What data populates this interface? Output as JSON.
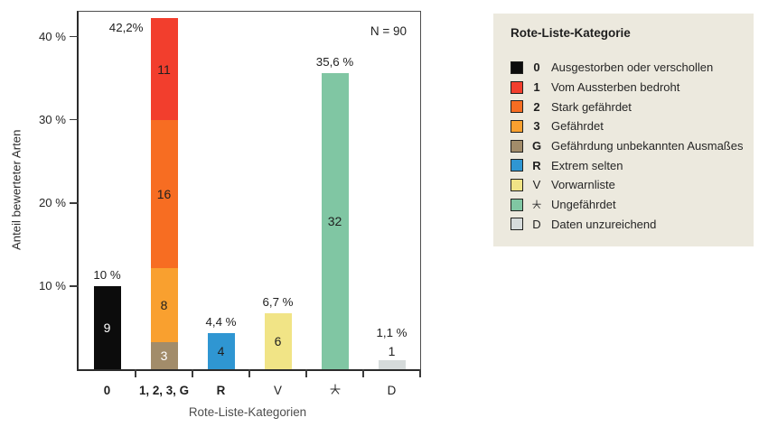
{
  "chart_data": {
    "type": "bar",
    "stacked": true,
    "annotation": "N = 90",
    "n_total": 90,
    "xlabel": "Rote-Liste-Kategorien",
    "ylabel": "Anteil bewerteter Arten",
    "ylim": [
      0,
      43
    ],
    "grid": false,
    "legend_position": "right",
    "y_ticks": [
      {
        "value": 10,
        "label": "10 %"
      },
      {
        "value": 20,
        "label": "20 %"
      },
      {
        "value": 30,
        "label": "30 %"
      },
      {
        "value": 40,
        "label": "40 %"
      }
    ],
    "categories": [
      {
        "tick": "0",
        "bold": true,
        "star": false,
        "total_pct": 10.0,
        "total_label": "10 %",
        "side_label": false,
        "count_outside": false,
        "segments": [
          {
            "code": "0",
            "count": 9,
            "pct": 10.0,
            "color": "#0c0c0c",
            "text_color": "#ffffff"
          }
        ]
      },
      {
        "tick": "1, 2, 3, G",
        "bold": true,
        "star": false,
        "total_pct": 42.2,
        "total_label": "42,2%",
        "side_label": true,
        "count_outside": false,
        "segments": [
          {
            "code": "G",
            "count": 3,
            "pct": 3.3,
            "color": "#a28c6a",
            "text_color": "#ffffff"
          },
          {
            "code": "3",
            "count": 8,
            "pct": 8.9,
            "color": "#f9a02f",
            "text_color": "#1f1f1f"
          },
          {
            "code": "2",
            "count": 16,
            "pct": 17.8,
            "color": "#f76d22",
            "text_color": "#1f1f1f"
          },
          {
            "code": "1",
            "count": 11,
            "pct": 12.2,
            "color": "#f23e2d",
            "text_color": "#1f1f1f"
          }
        ]
      },
      {
        "tick": "R",
        "bold": true,
        "star": false,
        "total_pct": 4.4,
        "total_label": "4,4 %",
        "side_label": false,
        "count_outside": false,
        "segments": [
          {
            "code": "R",
            "count": 4,
            "pct": 4.4,
            "color": "#2f96d2",
            "text_color": "#1f1f1f"
          }
        ]
      },
      {
        "tick": "V",
        "bold": false,
        "star": false,
        "total_pct": 6.7,
        "total_label": "6,7 %",
        "side_label": false,
        "count_outside": false,
        "segments": [
          {
            "code": "V",
            "count": 6,
            "pct": 6.7,
            "color": "#f1e486",
            "text_color": "#1f1f1f"
          }
        ]
      },
      {
        "tick": "✶",
        "bold": false,
        "star": true,
        "total_pct": 35.6,
        "total_label": "35,6 %",
        "side_label": false,
        "count_outside": false,
        "segments": [
          {
            "code": "✶",
            "count": 32,
            "pct": 35.6,
            "color": "#80c6a3",
            "text_color": "#1f1f1f"
          }
        ]
      },
      {
        "tick": "D",
        "bold": false,
        "star": false,
        "total_pct": 1.1,
        "total_label": "1,1 %",
        "side_label": false,
        "count_outside": true,
        "segments": [
          {
            "code": "D",
            "count": 1,
            "pct": 1.1,
            "color": "#d6dbdb",
            "text_color": "#1f1f1f"
          }
        ]
      }
    ]
  },
  "legend": {
    "title": "Rote-Liste-Kategorie",
    "background": "#ece9de",
    "items": [
      {
        "code": "0",
        "bold": true,
        "star": false,
        "label": "Ausgestorben oder verschollen",
        "color": "#0c0c0c"
      },
      {
        "code": "1",
        "bold": true,
        "star": false,
        "label": "Vom Aussterben bedroht",
        "color": "#f23e2d"
      },
      {
        "code": "2",
        "bold": true,
        "star": false,
        "label": "Stark gefährdet",
        "color": "#f76d22"
      },
      {
        "code": "3",
        "bold": true,
        "star": false,
        "label": "Gefährdet",
        "color": "#f9a02f"
      },
      {
        "code": "G",
        "bold": true,
        "star": false,
        "label": "Gefährdung unbekannten Ausmaßes",
        "color": "#a28c6a"
      },
      {
        "code": "R",
        "bold": true,
        "star": false,
        "label": "Extrem selten",
        "color": "#2f96d2"
      },
      {
        "code": "V",
        "bold": false,
        "star": false,
        "label": "Vorwarnliste",
        "color": "#f1e486"
      },
      {
        "code": "✶",
        "bold": false,
        "star": true,
        "label": "Ungefährdet",
        "color": "#80c6a3"
      },
      {
        "code": "D",
        "bold": false,
        "star": false,
        "label": "Daten unzureichend",
        "color": "#d6dbdb"
      }
    ]
  },
  "colors": {
    "axis": "#4a4a4a",
    "axis_bottom": "#2b2b2b",
    "text": "#1f1f1f",
    "muted_text": "#4d4d4d",
    "background": "#ffffff"
  }
}
